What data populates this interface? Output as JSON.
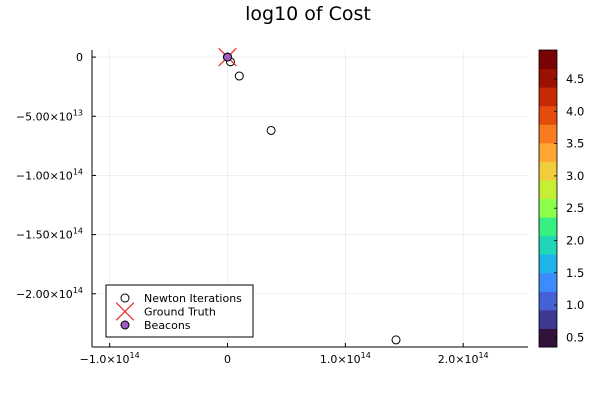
{
  "chart_data": {
    "type": "scatter",
    "title": "log10 of Cost",
    "xlabel": "",
    "ylabel": "",
    "xlim": [
      -115000000000000.0,
      255000000000000.0
    ],
    "ylim": [
      -245000000000000.0,
      6000000000000.0
    ],
    "x_ticks": [
      {
        "value": -100000000000000.0,
        "mantissa": "−1.0×10",
        "exp": "14"
      },
      {
        "value": 0,
        "mantissa": "0",
        "exp": ""
      },
      {
        "value": 100000000000000.0,
        "mantissa": "1.0×10",
        "exp": "14"
      },
      {
        "value": 200000000000000.0,
        "mantissa": "2.0×10",
        "exp": "14"
      }
    ],
    "y_ticks": [
      {
        "value": 0,
        "mantissa": "0",
        "exp": ""
      },
      {
        "value": -50000000000000.0,
        "mantissa": "−5.00×10",
        "exp": "13"
      },
      {
        "value": -100000000000000.0,
        "mantissa": "−1.00×10",
        "exp": "14"
      },
      {
        "value": -150000000000000.0,
        "mantissa": "−1.50×10",
        "exp": "14"
      },
      {
        "value": -200000000000000.0,
        "mantissa": "−2.00×10",
        "exp": "14"
      }
    ],
    "grid": true,
    "legend_position": "bottom-left",
    "series": [
      {
        "name": "Newton Iterations",
        "marker": "open-circle",
        "color": "#000000",
        "points": [
          {
            "x": 0,
            "y": 0
          },
          {
            "x": 2500000000000.0,
            "y": -4000000000000.0
          },
          {
            "x": 10000000000000.0,
            "y": -16000000000000.0
          },
          {
            "x": 37000000000000.0,
            "y": -62000000000000.0
          },
          {
            "x": 143000000000000.0,
            "y": -239000000000000.0
          }
        ]
      },
      {
        "name": "Ground Truth",
        "marker": "x",
        "color": "#e8322b",
        "points": [
          {
            "x": 0,
            "y": 0
          }
        ]
      },
      {
        "name": "Beacons",
        "marker": "filled-circle",
        "color": "#a05ac4",
        "points": [
          {
            "x": 0,
            "y": 0
          }
        ]
      }
    ],
    "colorbar": {
      "range": [
        0.35,
        4.95
      ],
      "ticks": [
        {
          "value": 0.5,
          "label": "0.5"
        },
        {
          "value": 1.0,
          "label": "1.0"
        },
        {
          "value": 1.5,
          "label": "1.5"
        },
        {
          "value": 2.0,
          "label": "2.0"
        },
        {
          "value": 2.5,
          "label": "2.5"
        },
        {
          "value": 3.0,
          "label": "3.0"
        },
        {
          "value": 3.5,
          "label": "3.5"
        },
        {
          "value": 4.0,
          "label": "4.0"
        },
        {
          "value": 4.5,
          "label": "4.5"
        }
      ],
      "colors": [
        "#30123b",
        "#3e3891",
        "#4660d6",
        "#3c8cfd",
        "#20b3e9",
        "#1fd6b8",
        "#37ef82",
        "#8cfe4c",
        "#c6ef34",
        "#f0cd3a",
        "#fea634",
        "#f97a1f",
        "#e44c0e",
        "#c52a04",
        "#9a1102",
        "#7a0403"
      ]
    }
  }
}
